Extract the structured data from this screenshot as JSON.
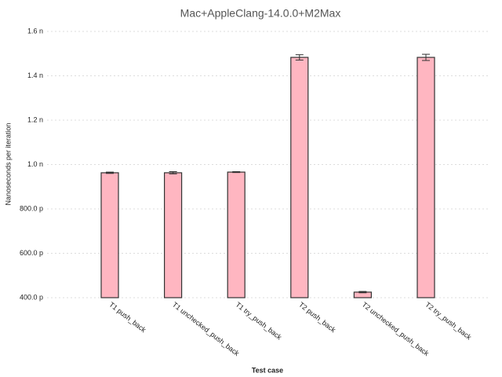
{
  "chart_data": {
    "type": "bar",
    "title": "Mac+AppleClang-14.0.0+M2Max",
    "x_label": "Test case",
    "y_label": "Nanoseconds per iteration",
    "categories": [
      "T1 push_back",
      "T1 unchecked_push_back",
      "T1 try_push_back",
      "T2 push_back",
      "T2 unchecked_push_back",
      "T2 try_push_back"
    ],
    "values": [
      0.963,
      0.963,
      0.966,
      1.483,
      0.425,
      1.483
    ],
    "errors": [
      0.003,
      0.005,
      0.002,
      0.012,
      0.003,
      0.014
    ],
    "color": "#ffb6c1",
    "edge_color": "#333333",
    "ylim": [
      0.4,
      1.6
    ],
    "yticks": [
      {
        "value": 0.4,
        "label": "400.0 p"
      },
      {
        "value": 0.6,
        "label": "600.0 p"
      },
      {
        "value": 0.8,
        "label": "800.0 p"
      },
      {
        "value": 1.0,
        "label": "1.0 n"
      },
      {
        "value": 1.2,
        "label": "1.2 n"
      },
      {
        "value": 1.4,
        "label": "1.4 n"
      },
      {
        "value": 1.6,
        "label": "1.6 n"
      }
    ],
    "grid": true
  }
}
